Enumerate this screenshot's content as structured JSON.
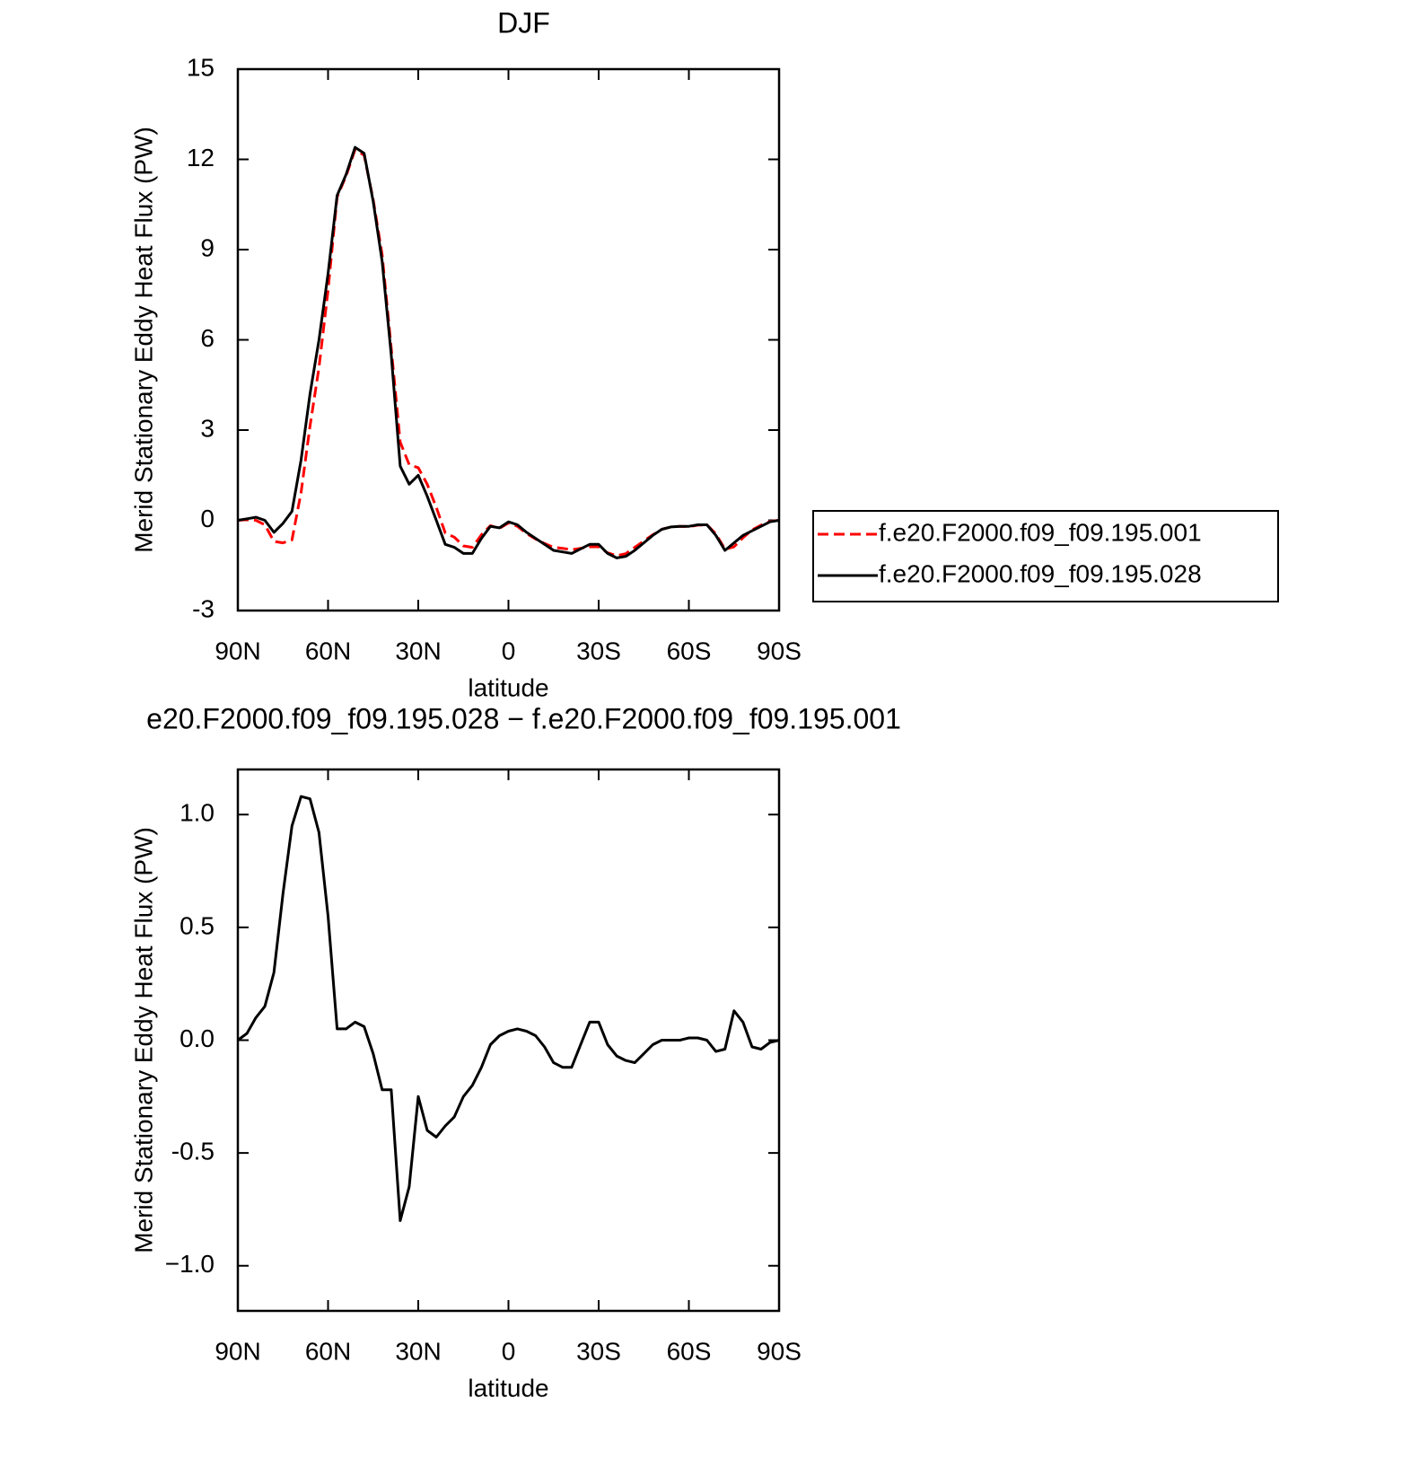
{
  "chart_data": [
    {
      "type": "line",
      "title": "DJF",
      "ylabel": "Merid Stationary Eddy Heat Flux (PW)",
      "xlabel": "latitude",
      "xlim": [
        90,
        -90
      ],
      "xticks": [
        {
          "value": 90,
          "label": "90N"
        },
        {
          "value": 60,
          "label": "60N"
        },
        {
          "value": 30,
          "label": "30N"
        },
        0,
        {
          "value": -30,
          "label": "30S"
        },
        {
          "value": -60,
          "label": "60S"
        },
        {
          "value": -90,
          "label": "90S"
        }
      ],
      "ylim": [
        -3,
        15
      ],
      "yticks": [
        -3,
        0,
        3,
        6,
        9,
        12,
        15
      ],
      "legend": "right",
      "x": [
        90,
        87,
        84,
        81,
        78,
        75,
        72,
        69,
        66,
        63,
        60,
        57,
        54,
        51,
        48,
        45,
        42,
        39,
        36,
        33,
        30,
        27,
        24,
        21,
        18,
        15,
        12,
        9,
        6,
        3,
        0,
        -3,
        -6,
        -9,
        -12,
        -15,
        -18,
        -21,
        -24,
        -27,
        -30,
        -33,
        -36,
        -39,
        -42,
        -45,
        -48,
        -51,
        -54,
        -57,
        -60,
        -63,
        -66,
        -69,
        -72,
        -75,
        -78,
        -81,
        -84,
        -87,
        -90
      ],
      "series": [
        {
          "name": "f.e20.F2000.f09_f09.195.001",
          "color": "#ff0000",
          "dashed": true,
          "values": [
            0,
            0.02,
            0.0,
            -0.15,
            -0.7,
            -0.75,
            -0.65,
            0.92,
            3.13,
            5.08,
            7.65,
            10.75,
            11.45,
            12.32,
            12.14,
            10.66,
            8.82,
            5.72,
            2.6,
            1.85,
            1.75,
            1.2,
            0.43,
            -0.42,
            -0.56,
            -0.85,
            -0.9,
            -0.48,
            -0.18,
            -0.27,
            -0.09,
            -0.2,
            -0.44,
            -0.62,
            -0.77,
            -0.9,
            -0.93,
            -0.98,
            -0.93,
            -0.88,
            -0.88,
            -1.08,
            -1.18,
            -1.11,
            -0.9,
            -0.69,
            -0.48,
            -0.3,
            -0.22,
            -0.2,
            -0.21,
            -0.16,
            -0.15,
            -0.45,
            -0.96,
            -0.88,
            -0.58,
            -0.32,
            -0.16,
            -0.04,
            0
          ]
        },
        {
          "name": "f.e20.F2000.f09_f09.195.028",
          "color": "#000000",
          "dashed": false,
          "values": [
            0,
            0.05,
            0.1,
            0.0,
            -0.4,
            -0.1,
            0.3,
            2.0,
            4.2,
            6.0,
            8.2,
            10.8,
            11.5,
            12.4,
            12.2,
            10.6,
            8.6,
            5.5,
            1.8,
            1.2,
            1.5,
            0.8,
            0.0,
            -0.8,
            -0.9,
            -1.1,
            -1.1,
            -0.6,
            -0.2,
            -0.25,
            -0.05,
            -0.15,
            -0.4,
            -0.6,
            -0.8,
            -1.0,
            -1.05,
            -1.1,
            -0.95,
            -0.8,
            -0.8,
            -1.1,
            -1.25,
            -1.2,
            -1.0,
            -0.75,
            -0.5,
            -0.3,
            -0.22,
            -0.2,
            -0.2,
            -0.15,
            -0.15,
            -0.5,
            -1.0,
            -0.75,
            -0.5,
            -0.35,
            -0.2,
            -0.05,
            0
          ]
        }
      ]
    },
    {
      "type": "line",
      "title": "e20.F2000.f09_f09.195.028 − f.e20.F2000.f09_f09.195.001",
      "ylabel": "Merid Stationary Eddy Heat Flux (PW)",
      "xlabel": "latitude",
      "xlim": [
        90,
        -90
      ],
      "xticks": [
        {
          "value": 90,
          "label": "90N"
        },
        {
          "value": 60,
          "label": "60N"
        },
        {
          "value": 30,
          "label": "30N"
        },
        0,
        {
          "value": -30,
          "label": "30S"
        },
        {
          "value": -60,
          "label": "60S"
        },
        {
          "value": -90,
          "label": "90S"
        }
      ],
      "ylim": [
        -1.2,
        1.2
      ],
      "yticks": [
        {
          "value": -1,
          "label": "−1.0"
        },
        -0.5,
        {
          "value": 0,
          "label": "0.0"
        },
        0.5,
        {
          "value": 1,
          "label": "1.0"
        }
      ],
      "x": [
        90,
        87,
        84,
        81,
        78,
        75,
        72,
        69,
        66,
        63,
        60,
        57,
        54,
        51,
        48,
        45,
        42,
        39,
        36,
        33,
        30,
        27,
        24,
        21,
        18,
        15,
        12,
        9,
        6,
        3,
        0,
        -3,
        -6,
        -9,
        -12,
        -15,
        -18,
        -21,
        -24,
        -27,
        -30,
        -33,
        -36,
        -39,
        -42,
        -45,
        -48,
        -51,
        -54,
        -57,
        -60,
        -63,
        -66,
        -69,
        -72,
        -75,
        -78,
        -81,
        -84,
        -87,
        -90
      ],
      "color": "#000000",
      "values": [
        0,
        0.03,
        0.1,
        0.15,
        0.3,
        0.65,
        0.95,
        1.08,
        1.07,
        0.92,
        0.55,
        0.05,
        0.05,
        0.08,
        0.06,
        -0.06,
        -0.22,
        -0.22,
        -0.8,
        -0.65,
        -0.25,
        -0.4,
        -0.43,
        -0.38,
        -0.34,
        -0.25,
        -0.2,
        -0.12,
        -0.02,
        0.02,
        0.04,
        0.05,
        0.04,
        0.02,
        -0.03,
        -0.1,
        -0.12,
        -0.12,
        -0.02,
        0.08,
        0.08,
        -0.02,
        -0.07,
        -0.09,
        -0.1,
        -0.06,
        -0.02,
        0.0,
        0.0,
        0.0,
        0.01,
        0.01,
        0.0,
        -0.05,
        -0.04,
        0.13,
        0.08,
        -0.03,
        -0.04,
        -0.01,
        0
      ]
    }
  ]
}
